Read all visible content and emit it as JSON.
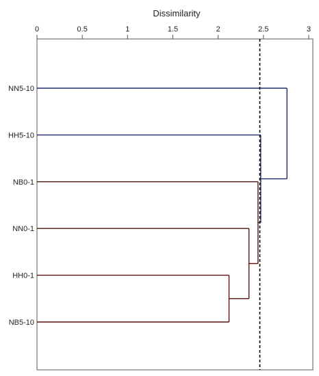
{
  "chart_data": {
    "type": "dendrogram",
    "title": "",
    "xlabel": "Dissimilarity",
    "ylabel": "",
    "xlim": [
      0,
      3
    ],
    "xticks": [
      "0",
      "0.5",
      "1",
      "1.5",
      "2",
      "2.5",
      "3"
    ],
    "xtick_values": [
      0,
      0.5,
      1,
      1.5,
      2,
      2.5,
      3
    ],
    "axis_position": "top",
    "grid": false,
    "leaves": [
      "NN5-10",
      "HH5-10",
      "NB0-1",
      "NN0-1",
      "HH0-1",
      "NB5-10"
    ],
    "merges": [
      {
        "id": "c1",
        "left": "HH0-1",
        "right": "NB5-10",
        "height": 2.12,
        "cluster": "red"
      },
      {
        "id": "c2",
        "left": "NN0-1",
        "right": "c1",
        "height": 2.34,
        "cluster": "red"
      },
      {
        "id": "c3",
        "left": "NB0-1",
        "right": "c2",
        "height": 2.44,
        "cluster": "red"
      },
      {
        "id": "c4",
        "left": "HH5-10",
        "right": "c3",
        "height": 2.47,
        "cluster": "blue"
      },
      {
        "id": "c5",
        "left": "NN5-10",
        "right": "c4",
        "height": 2.76,
        "cluster": "blue"
      }
    ],
    "leaf_cluster": {
      "NN5-10": "blue",
      "HH5-10": "blue",
      "NB0-1": "red",
      "NN0-1": "red",
      "HH0-1": "red",
      "NB5-10": "red"
    },
    "cutoff": {
      "value": 2.46,
      "style": "dashed"
    },
    "colors": {
      "blue": "#1f2a6b",
      "red": "#5a1010",
      "axis": "#555555",
      "cutoff": "#000000"
    }
  }
}
